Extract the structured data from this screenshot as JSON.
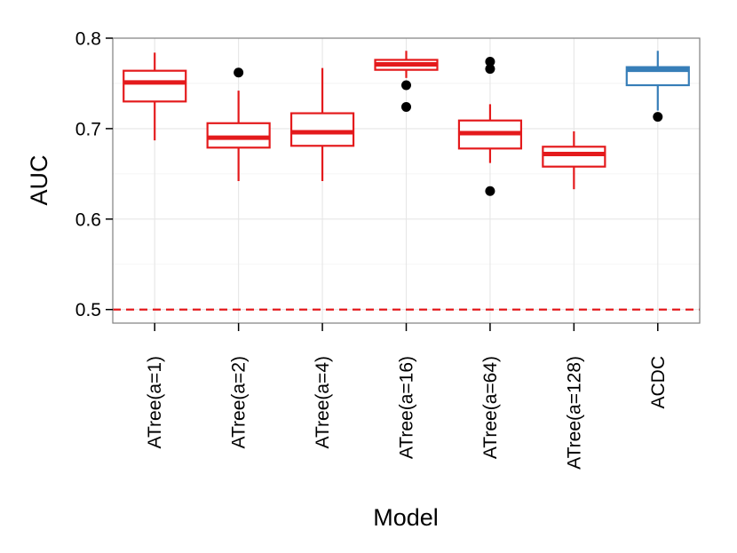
{
  "chart_data": {
    "type": "boxplot",
    "xlabel": "Model",
    "ylabel": "AUC",
    "ylim": [
      0.485,
      0.8
    ],
    "y_ticks": [
      "0.5",
      "0.6",
      "0.7",
      "0.8"
    ],
    "grid": true,
    "categories": [
      "ATree(a=1)",
      "ATree(a=2)",
      "ATree(a=4)",
      "ATree(a=16)",
      "ATree(a=64)",
      "ATree(a=128)",
      "ACDC"
    ],
    "boxes": [
      {
        "min": 0.687,
        "q1": 0.73,
        "median": 0.751,
        "q3": 0.764,
        "max": 0.784,
        "outliers": [],
        "color": "#e41a1c"
      },
      {
        "min": 0.642,
        "q1": 0.679,
        "median": 0.69,
        "q3": 0.706,
        "max": 0.742,
        "outliers": [
          0.762
        ],
        "color": "#e41a1c"
      },
      {
        "min": 0.642,
        "q1": 0.681,
        "median": 0.696,
        "q3": 0.717,
        "max": 0.767,
        "outliers": [],
        "color": "#e41a1c"
      },
      {
        "min": 0.756,
        "q1": 0.765,
        "median": 0.771,
        "q3": 0.776,
        "max": 0.786,
        "outliers": [
          0.748,
          0.724
        ],
        "color": "#e41a1c"
      },
      {
        "min": 0.662,
        "q1": 0.678,
        "median": 0.695,
        "q3": 0.709,
        "max": 0.727,
        "outliers": [
          0.774,
          0.766,
          0.631
        ],
        "color": "#e41a1c"
      },
      {
        "min": 0.633,
        "q1": 0.658,
        "median": 0.672,
        "q3": 0.68,
        "max": 0.697,
        "outliers": [],
        "color": "#e41a1c"
      },
      {
        "min": 0.72,
        "q1": 0.748,
        "median": 0.765,
        "q3": 0.768,
        "max": 0.786,
        "outliers": [
          0.713
        ],
        "color": "#377eb8"
      }
    ],
    "reference_line": {
      "y": 0.5,
      "style": "dashed",
      "color": "#e41a1c"
    }
  }
}
